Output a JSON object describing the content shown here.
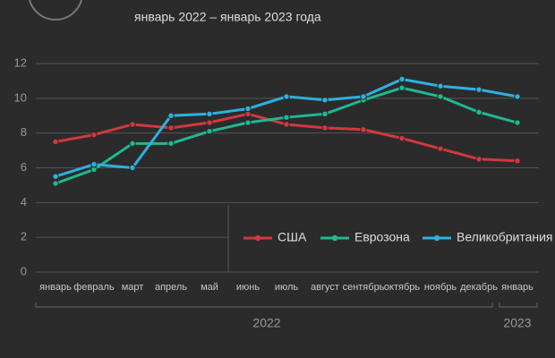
{
  "chart_data": {
    "type": "line",
    "subtitle": "январь 2022 – январь 2023 года",
    "categories": [
      "январь",
      "февраль",
      "март",
      "апрель",
      "май",
      "июнь",
      "июль",
      "август",
      "сентябрь",
      "октябрь",
      "ноябрь",
      "декабрь",
      "январь"
    ],
    "year_labels": [
      "2022",
      "2023"
    ],
    "series": [
      {
        "name": "США",
        "color": "#d0393f",
        "values": [
          7.5,
          7.9,
          8.5,
          8.3,
          8.6,
          9.1,
          8.5,
          8.3,
          8.2,
          7.7,
          7.1,
          6.5,
          6.4
        ]
      },
      {
        "name": "Еврозона",
        "color": "#1db991",
        "values": [
          5.1,
          5.9,
          7.4,
          7.4,
          8.1,
          8.6,
          8.9,
          9.1,
          9.9,
          10.6,
          10.1,
          9.2,
          8.6
        ]
      },
      {
        "name": "Великобритания",
        "color": "#2eb0e0",
        "values": [
          5.5,
          6.2,
          6.0,
          9.0,
          9.1,
          9.4,
          10.1,
          9.9,
          10.1,
          11.1,
          10.7,
          10.5,
          10.1
        ]
      }
    ],
    "ylim": [
      0,
      12
    ],
    "yticks": [
      0,
      2,
      4,
      6,
      8,
      10,
      12
    ],
    "grid": true,
    "legend": "lower right"
  }
}
